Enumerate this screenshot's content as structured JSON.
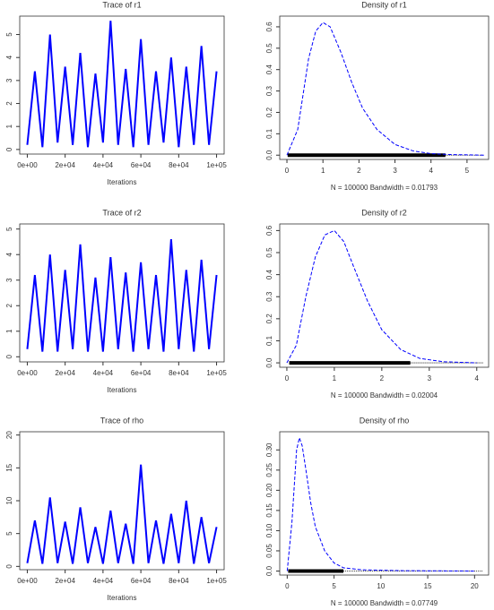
{
  "chart_data": [
    {
      "type": "line",
      "title": "Trace of r1",
      "x_label": "Iterations",
      "color": "#0000ff",
      "x": [
        0,
        4000,
        8000,
        12000,
        16000,
        20000,
        24000,
        28000,
        32000,
        36000,
        40000,
        44000,
        48000,
        52000,
        56000,
        60000,
        64000,
        68000,
        72000,
        76000,
        80000,
        84000,
        88000,
        92000,
        96000,
        100000
      ],
      "values": [
        0.2,
        3.4,
        0.1,
        5.0,
        0.3,
        3.6,
        0.2,
        4.2,
        0.1,
        3.3,
        0.3,
        5.6,
        0.2,
        3.5,
        0.1,
        4.8,
        0.2,
        3.4,
        0.3,
        4.0,
        0.1,
        3.6,
        0.2,
        4.5,
        0.2,
        3.4
      ],
      "xlim": [
        -4000,
        104000
      ],
      "xticks": [
        {
          "value": 0,
          "label": "0e+00"
        },
        {
          "value": 20000,
          "label": "2e+04"
        },
        {
          "value": 40000,
          "label": "4e+04"
        },
        {
          "value": 60000,
          "label": "6e+04"
        },
        {
          "value": 80000,
          "label": "8e+04"
        },
        {
          "value": 100000,
          "label": "1e+05"
        }
      ],
      "ylim": [
        -0.2,
        5.8
      ],
      "yticks": [
        0,
        1,
        2,
        3,
        4,
        5
      ]
    },
    {
      "type": "density",
      "title": "Density of r1",
      "x_label": "N = 100000   Bandwidth = 0.01793",
      "color": "#0000ff",
      "x": [
        0,
        0.3,
        0.6,
        0.8,
        1.0,
        1.2,
        1.5,
        1.8,
        2.1,
        2.5,
        3.0,
        3.5,
        4.0,
        4.5,
        5.5
      ],
      "values": [
        0,
        0.12,
        0.45,
        0.58,
        0.62,
        0.6,
        0.48,
        0.34,
        0.22,
        0.12,
        0.05,
        0.02,
        0.007,
        0.003,
        0
      ],
      "rug": [
        0.02,
        4.4
      ],
      "xlim": [
        -0.2,
        5.6
      ],
      "xticks": [
        0,
        1,
        2,
        3,
        4,
        5
      ],
      "ylim": [
        -0.02,
        0.65
      ],
      "yticks": [
        {
          "value": 0,
          "label": "0.0"
        },
        {
          "value": 0.1,
          "label": "0.1"
        },
        {
          "value": 0.2,
          "label": "0.2"
        },
        {
          "value": 0.3,
          "label": "0.3"
        },
        {
          "value": 0.4,
          "label": "0.4"
        },
        {
          "value": 0.5,
          "label": "0.5"
        },
        {
          "value": 0.6,
          "label": "0.6"
        }
      ]
    },
    {
      "type": "line",
      "title": "Trace of r2",
      "x_label": "Iterations",
      "color": "#0000ff",
      "x": [
        0,
        4000,
        8000,
        12000,
        16000,
        20000,
        24000,
        28000,
        32000,
        36000,
        40000,
        44000,
        48000,
        52000,
        56000,
        60000,
        64000,
        68000,
        72000,
        76000,
        80000,
        84000,
        88000,
        92000,
        96000,
        100000
      ],
      "values": [
        0.3,
        3.2,
        0.2,
        4.0,
        0.2,
        3.4,
        0.3,
        4.4,
        0.2,
        3.1,
        0.2,
        3.9,
        0.3,
        3.3,
        0.2,
        3.7,
        0.3,
        3.2,
        0.2,
        4.6,
        0.3,
        3.4,
        0.2,
        3.8,
        0.3,
        3.2
      ],
      "xlim": [
        -4000,
        104000
      ],
      "xticks": [
        {
          "value": 0,
          "label": "0e+00"
        },
        {
          "value": 20000,
          "label": "2e+04"
        },
        {
          "value": 40000,
          "label": "4e+04"
        },
        {
          "value": 60000,
          "label": "6e+04"
        },
        {
          "value": 80000,
          "label": "8e+04"
        },
        {
          "value": 100000,
          "label": "1e+05"
        }
      ],
      "ylim": [
        -0.2,
        5.2
      ],
      "yticks": [
        0,
        1,
        2,
        3,
        4,
        5
      ]
    },
    {
      "type": "density",
      "title": "Density of r2",
      "x_label": "N = 100000   Bandwidth = 0.02004",
      "color": "#0000ff",
      "x": [
        0,
        0.2,
        0.4,
        0.6,
        0.8,
        1.0,
        1.2,
        1.4,
        1.7,
        2.0,
        2.4,
        2.8,
        3.3,
        4.0
      ],
      "values": [
        0,
        0.08,
        0.3,
        0.48,
        0.58,
        0.6,
        0.55,
        0.44,
        0.28,
        0.15,
        0.06,
        0.02,
        0.005,
        0
      ],
      "rug": [
        0.05,
        2.6
      ],
      "xlim": [
        -0.15,
        4.25
      ],
      "xticks": [
        0,
        1,
        2,
        3,
        4
      ],
      "ylim": [
        -0.02,
        0.63
      ],
      "yticks": [
        {
          "value": 0,
          "label": "0.0"
        },
        {
          "value": 0.1,
          "label": "0.1"
        },
        {
          "value": 0.2,
          "label": "0.2"
        },
        {
          "value": 0.3,
          "label": "0.3"
        },
        {
          "value": 0.4,
          "label": "0.4"
        },
        {
          "value": 0.5,
          "label": "0.5"
        },
        {
          "value": 0.6,
          "label": "0.6"
        }
      ]
    },
    {
      "type": "line",
      "title": "Trace of rho",
      "x_label": "Iterations",
      "color": "#0000ff",
      "x": [
        0,
        4000,
        8000,
        12000,
        16000,
        20000,
        24000,
        28000,
        32000,
        36000,
        40000,
        44000,
        48000,
        52000,
        56000,
        60000,
        64000,
        68000,
        72000,
        76000,
        80000,
        84000,
        88000,
        92000,
        96000,
        100000
      ],
      "values": [
        0.5,
        7.0,
        0.4,
        10.5,
        0.5,
        6.8,
        0.4,
        9.0,
        0.5,
        6.0,
        0.4,
        8.5,
        0.5,
        6.5,
        0.4,
        15.5,
        0.5,
        7.0,
        0.4,
        8.0,
        0.5,
        10.0,
        0.4,
        7.5,
        0.5,
        6.0
      ],
      "xlim": [
        -4000,
        104000
      ],
      "xticks": [
        {
          "value": 0,
          "label": "0e+00"
        },
        {
          "value": 20000,
          "label": "2e+04"
        },
        {
          "value": 40000,
          "label": "4e+04"
        },
        {
          "value": 60000,
          "label": "6e+04"
        },
        {
          "value": 80000,
          "label": "8e+04"
        },
        {
          "value": 100000,
          "label": "1e+05"
        }
      ],
      "ylim": [
        -0.5,
        20.5
      ],
      "yticks": [
        0,
        5,
        10,
        15,
        20
      ]
    },
    {
      "type": "density",
      "title": "Density of rho",
      "x_label": "N = 100000   Bandwidth = 0.07749",
      "color": "#0000ff",
      "x": [
        0,
        0.5,
        1.0,
        1.3,
        1.6,
        2.0,
        2.5,
        3.0,
        4.0,
        5.0,
        6.0,
        8.0,
        12.0,
        20.0
      ],
      "values": [
        0,
        0.12,
        0.3,
        0.33,
        0.31,
        0.25,
        0.17,
        0.11,
        0.05,
        0.02,
        0.008,
        0.003,
        0.001,
        0
      ],
      "rug": [
        0.1,
        6.0
      ],
      "xlim": [
        -0.8,
        21.5
      ],
      "xticks": [
        0,
        5,
        10,
        15,
        20
      ],
      "ylim": [
        -0.01,
        0.345
      ],
      "yticks": [
        {
          "value": 0,
          "label": "0.0"
        },
        {
          "value": 0.05,
          "label": "0.05"
        },
        {
          "value": 0.1,
          "label": "0.10"
        },
        {
          "value": 0.15,
          "label": "0.15"
        },
        {
          "value": 0.2,
          "label": "0.20"
        },
        {
          "value": 0.25,
          "label": "0.25"
        },
        {
          "value": 0.3,
          "label": "0.30"
        }
      ]
    }
  ]
}
